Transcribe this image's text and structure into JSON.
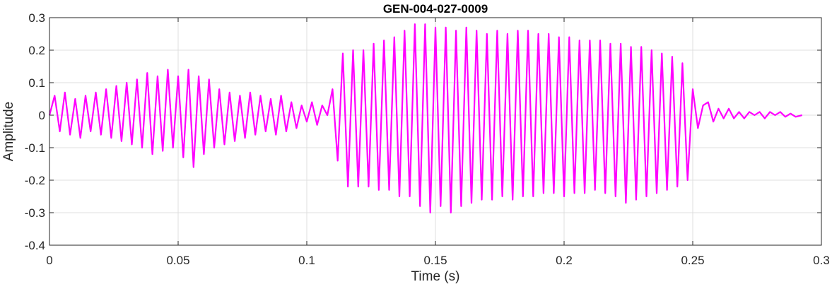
{
  "chart_data": {
    "type": "line",
    "title": "GEN-004-027-0009",
    "xlabel": "Time (s)",
    "ylabel": "Amplitude",
    "xlim": [
      0,
      0.3
    ],
    "ylim": [
      -0.4,
      0.3
    ],
    "xticks": [
      0,
      0.05,
      0.1,
      0.15,
      0.2,
      0.25,
      0.3
    ],
    "xtick_labels": [
      "0",
      "0.05",
      "0.1",
      "0.15",
      "0.2",
      "0.25",
      "0.3"
    ],
    "yticks": [
      -0.4,
      -0.3,
      -0.2,
      -0.1,
      0,
      0.1,
      0.2,
      0.3
    ],
    "ytick_labels": [
      "-0.4",
      "-0.3",
      "-0.2",
      "-0.1",
      "0",
      "0.1",
      "0.2",
      "0.3"
    ],
    "grid": true,
    "line_color": "#ff00ff",
    "series": [
      {
        "name": "",
        "x": [
          0,
          0.002,
          0.004,
          0.006,
          0.008,
          0.01,
          0.012,
          0.014,
          0.016,
          0.018,
          0.02,
          0.022,
          0.024,
          0.026,
          0.028,
          0.03,
          0.032,
          0.034,
          0.036,
          0.038,
          0.04,
          0.042,
          0.044,
          0.046,
          0.048,
          0.05,
          0.052,
          0.054,
          0.056,
          0.058,
          0.06,
          0.062,
          0.064,
          0.066,
          0.068,
          0.07,
          0.072,
          0.074,
          0.076,
          0.078,
          0.08,
          0.082,
          0.084,
          0.086,
          0.088,
          0.09,
          0.092,
          0.094,
          0.096,
          0.098,
          0.1,
          0.102,
          0.104,
          0.106,
          0.108,
          0.11,
          0.112,
          0.114,
          0.116,
          0.118,
          0.12,
          0.122,
          0.124,
          0.126,
          0.128,
          0.13,
          0.132,
          0.134,
          0.136,
          0.138,
          0.14,
          0.142,
          0.144,
          0.146,
          0.148,
          0.15,
          0.152,
          0.154,
          0.156,
          0.158,
          0.16,
          0.162,
          0.164,
          0.166,
          0.168,
          0.17,
          0.172,
          0.174,
          0.176,
          0.178,
          0.18,
          0.182,
          0.184,
          0.186,
          0.188,
          0.19,
          0.192,
          0.194,
          0.196,
          0.198,
          0.2,
          0.202,
          0.204,
          0.206,
          0.208,
          0.21,
          0.212,
          0.214,
          0.216,
          0.218,
          0.22,
          0.222,
          0.224,
          0.226,
          0.228,
          0.23,
          0.232,
          0.234,
          0.236,
          0.238,
          0.24,
          0.242,
          0.244,
          0.246,
          0.248,
          0.25,
          0.252,
          0.254,
          0.256,
          0.258,
          0.26,
          0.262,
          0.264,
          0.266,
          0.268,
          0.27,
          0.272,
          0.274,
          0.276,
          0.278,
          0.28,
          0.282,
          0.284,
          0.286,
          0.288,
          0.29,
          0.2925
        ],
        "y": [
          0,
          0.06,
          -0.05,
          0.07,
          -0.06,
          0.05,
          -0.07,
          0.06,
          -0.05,
          0.07,
          -0.06,
          0.08,
          -0.07,
          0.09,
          -0.08,
          0.1,
          -0.09,
          0.11,
          -0.1,
          0.13,
          -0.12,
          0.12,
          -0.11,
          0.14,
          -0.1,
          0.12,
          -0.13,
          0.14,
          -0.16,
          0.12,
          -0.12,
          0.11,
          -0.1,
          0.08,
          -0.09,
          0.07,
          -0.08,
          0.06,
          -0.07,
          0.07,
          -0.06,
          0.06,
          -0.05,
          0.05,
          -0.06,
          0.06,
          -0.05,
          0.04,
          -0.04,
          0.03,
          -0.02,
          0.04,
          -0.03,
          0.03,
          0,
          0.08,
          -0.14,
          0.19,
          -0.22,
          0.2,
          -0.22,
          0.2,
          -0.22,
          0.22,
          -0.23,
          0.23,
          -0.23,
          0.24,
          -0.25,
          0.26,
          -0.25,
          0.28,
          -0.28,
          0.28,
          -0.3,
          0.27,
          -0.28,
          0.27,
          -0.3,
          0.26,
          -0.28,
          0.27,
          -0.27,
          0.26,
          -0.26,
          0.25,
          -0.26,
          0.26,
          -0.25,
          0.25,
          -0.26,
          0.26,
          -0.25,
          0.26,
          -0.25,
          0.25,
          -0.24,
          0.25,
          -0.24,
          0.24,
          -0.25,
          0.24,
          -0.24,
          0.23,
          -0.24,
          0.23,
          -0.23,
          0.23,
          -0.24,
          0.22,
          -0.25,
          0.22,
          -0.27,
          0.21,
          -0.26,
          0.21,
          -0.25,
          0.2,
          -0.24,
          0.19,
          -0.23,
          0.18,
          -0.22,
          0.16,
          -0.2,
          0.08,
          -0.04,
          0.03,
          0.04,
          -0.02,
          0.02,
          -0.01,
          0.02,
          -0.01,
          0.01,
          -0.01,
          0.01,
          0,
          0.01,
          -0.01,
          0.01,
          0,
          0.01,
          -0.005,
          0.005,
          -0.005,
          0
        ]
      }
    ]
  }
}
